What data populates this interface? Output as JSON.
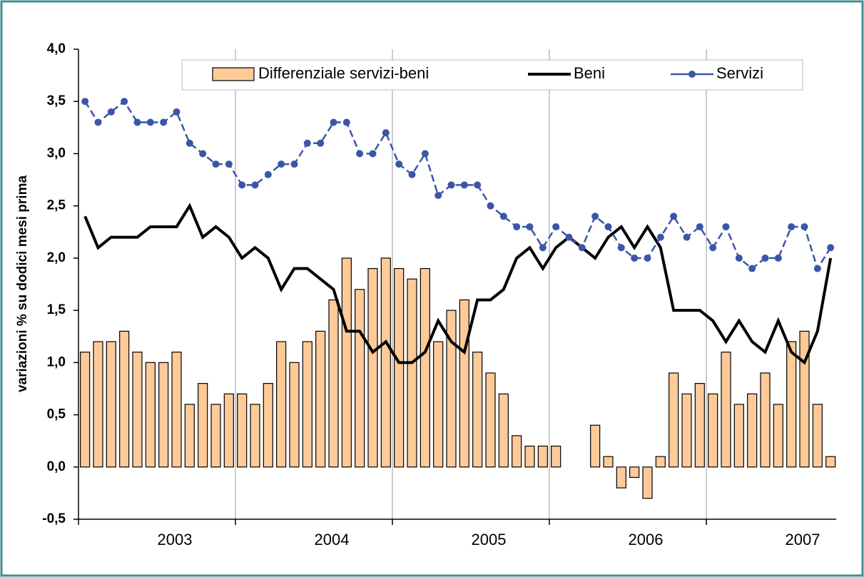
{
  "chart_data": {
    "type": "bar_line",
    "y_label": "variazioni % su dodici mesi prima",
    "x_labels": [
      "2003",
      "2004",
      "2005",
      "2006",
      "2007"
    ],
    "ylim": [
      -0.5,
      4.0
    ],
    "yticks": [
      {
        "value": -0.5,
        "label": "-0,5"
      },
      {
        "value": 0,
        "label": "0,0"
      },
      {
        "value": 0.5,
        "label": "0,5"
      },
      {
        "value": 1.0,
        "label": "1,0"
      },
      {
        "value": 1.5,
        "label": "1,5"
      },
      {
        "value": 2.0,
        "label": "2,0"
      },
      {
        "value": 2.5,
        "label": "2,5"
      },
      {
        "value": 3.0,
        "label": "3,0"
      },
      {
        "value": 3.5,
        "label": "3,5"
      },
      {
        "value": 4.0,
        "label": "4,0"
      }
    ],
    "series": [
      {
        "name": "Differenziale servizi-beni",
        "kind": "bar",
        "color": "#fdca98",
        "values": [
          1.1,
          1.2,
          1.2,
          1.3,
          1.1,
          1.0,
          1.0,
          1.1,
          0.6,
          0.8,
          0.6,
          0.7,
          0.7,
          0.6,
          0.8,
          1.2,
          1.0,
          1.2,
          1.3,
          1.6,
          2.0,
          1.7,
          1.9,
          2.0,
          1.9,
          1.8,
          1.9,
          1.2,
          1.5,
          1.6,
          1.1,
          0.9,
          0.7,
          0.3,
          0.2,
          0.2,
          0.2,
          0,
          0,
          0.4,
          0.1,
          -0.2,
          -0.1,
          -0.3,
          0.1,
          0.9,
          0.7,
          0.8,
          0.7,
          1.1,
          0.6,
          0.7,
          0.9,
          0.6,
          1.2,
          1.3,
          0.6,
          0.1
        ]
      },
      {
        "name": "Beni",
        "kind": "line",
        "color": "#000000",
        "values": [
          2.4,
          2.1,
          2.2,
          2.2,
          2.2,
          2.3,
          2.3,
          2.3,
          2.5,
          2.2,
          2.3,
          2.2,
          2.0,
          2.1,
          2.0,
          1.7,
          1.9,
          1.9,
          1.8,
          1.7,
          1.3,
          1.3,
          1.1,
          1.2,
          1.0,
          1.0,
          1.1,
          1.4,
          1.2,
          1.1,
          1.6,
          1.6,
          1.7,
          2.0,
          2.1,
          1.9,
          2.1,
          2.2,
          2.1,
          2.0,
          2.2,
          2.3,
          2.1,
          2.3,
          2.1,
          1.5,
          1.5,
          1.5,
          1.4,
          1.2,
          1.4,
          1.2,
          1.1,
          1.4,
          1.1,
          1.0,
          1.3,
          2.0
        ]
      },
      {
        "name": "Servizi",
        "kind": "dotline",
        "color": "#3b56a6",
        "values": [
          3.5,
          3.3,
          3.4,
          3.5,
          3.3,
          3.3,
          3.3,
          3.4,
          3.1,
          3.0,
          2.9,
          2.9,
          2.7,
          2.7,
          2.8,
          2.9,
          2.9,
          3.1,
          3.1,
          3.3,
          3.3,
          3.0,
          3.0,
          3.2,
          2.9,
          2.8,
          3.0,
          2.6,
          2.7,
          2.7,
          2.7,
          2.5,
          2.4,
          2.3,
          2.3,
          2.1,
          2.3,
          2.2,
          2.1,
          2.4,
          2.3,
          2.1,
          2.0,
          2.0,
          2.2,
          2.4,
          2.2,
          2.3,
          2.1,
          2.3,
          2.0,
          1.9,
          2.0,
          2.0,
          2.3,
          2.3,
          1.9,
          2.1
        ]
      }
    ]
  }
}
